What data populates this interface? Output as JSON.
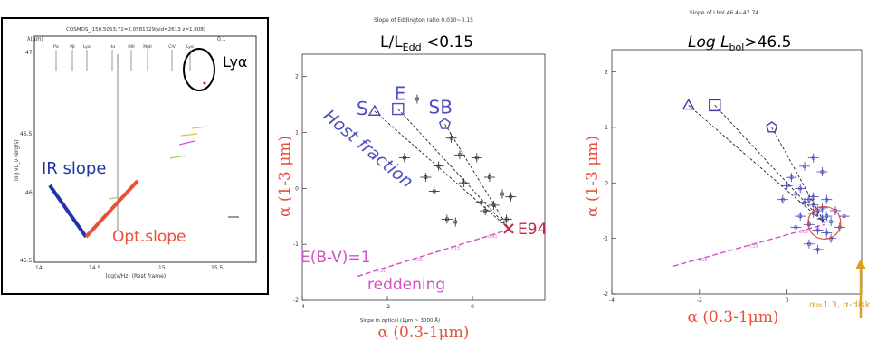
{
  "panel_sed": {
    "header_title": "COSMOS_J150.5063;71=2.0581729(sid=2613 z=1.808)",
    "top_axis_value": "0.1",
    "top_axis_label": "λ(μm)",
    "line_labels": [
      "Pα",
      "Pβ",
      "Lyα",
      "Hα",
      "OIII",
      "MgII",
      "CIV",
      "Lyα"
    ],
    "ylabel": "log νL_ν (erg/s)",
    "xlabel": "log(ν/Hz) (Rest frame)",
    "xticks": [
      "14",
      "14.5",
      "15",
      "15.5"
    ],
    "yticks": [
      "47",
      "46.5",
      "46",
      "45.5"
    ],
    "lya_label": "Lyα",
    "ir_slope_label": "IR slope",
    "opt_slope_label": "Opt.slope",
    "colors": {
      "ir": "#2233aa",
      "opt": "#e8503a",
      "frame": "#000000"
    }
  },
  "chart_data": [
    {
      "type": "scatter",
      "title": "Slope of Eddington ratio 0.010~0.15",
      "heading": "L/L",
      "heading_sub": "Edd",
      "heading_rest": " <0.15",
      "xlabel": "Slope in optical (1μm ~ 3000 Å)",
      "xlabel_big": "α (0.3-1μm)",
      "ylabel_big": "α (1-3 μm)",
      "xlim": [
        -4,
        1.7
      ],
      "ylim": [
        -2,
        2.4
      ],
      "xticks": [
        -4,
        -2,
        0
      ],
      "xtick_labels": [
        "-4",
        "-2",
        "0"
      ],
      "yticks": [
        -2,
        -1,
        0,
        1,
        2
      ],
      "ytick_labels": [
        "-2",
        "-1",
        "0",
        "1",
        "2"
      ],
      "model_points": [
        {
          "label": "S",
          "marker": "triangle",
          "x": -2.3,
          "y": 1.38
        },
        {
          "label": "E",
          "marker": "square",
          "x": -1.75,
          "y": 1.42
        },
        {
          "label": "SB",
          "marker": "pentagon",
          "x": -0.65,
          "y": 1.15
        }
      ],
      "anchor": {
        "label": "E94",
        "x": 0.85,
        "y": -0.72
      },
      "host_fraction_label": "Host fraction",
      "reddening_label": "E(B-V)=1",
      "reddening_word": "reddening",
      "reddening_line": {
        "x": [
          -2.7,
          0.8
        ],
        "y": [
          -1.57,
          -0.75
        ]
      },
      "reddening_ticks": [
        "0.35",
        "0.25",
        "0.15",
        "0.05"
      ],
      "data": {
        "x": [
          -1.3,
          -1.6,
          -0.8,
          -1.1,
          -0.9,
          -0.5,
          -0.3,
          0.1,
          -0.2,
          0.4,
          0.5,
          0.2,
          -0.6,
          0.7,
          0.9,
          0.8,
          -0.4,
          0.3
        ],
        "y": [
          1.6,
          0.55,
          0.4,
          0.2,
          -0.05,
          0.9,
          0.6,
          0.55,
          0.1,
          0.2,
          -0.3,
          -0.25,
          -0.55,
          -0.1,
          -0.15,
          -0.55,
          -0.6,
          -0.4
        ]
      },
      "colors": {
        "models": "#4b4fbf",
        "axis_big": "#e8503a",
        "reddening": "#d44fc4",
        "data": "#222222",
        "anchor": "#cc2244"
      }
    },
    {
      "type": "scatter",
      "title": "Slope of Lbol 46.4~47.74",
      "heading": "Log L",
      "heading_sub": "bol",
      "heading_rest": ">46.5",
      "xlabel_big": "α (0.3-1μm)",
      "ylabel_big": "α (1-3 μm)",
      "xlim": [
        -4,
        1.7
      ],
      "ylim": [
        -2,
        2.4
      ],
      "xticks": [
        -4,
        -2,
        0
      ],
      "xtick_labels": [
        "-4",
        "-2",
        "0"
      ],
      "yticks": [
        -2,
        -1,
        0,
        1,
        2
      ],
      "ytick_labels": [
        "-2",
        "-1",
        "0",
        "1",
        "2"
      ],
      "model_points": [
        {
          "label": "",
          "marker": "triangle",
          "x": -2.25,
          "y": 1.4
        },
        {
          "label": "",
          "marker": "square",
          "x": -1.65,
          "y": 1.4
        },
        {
          "label": "",
          "marker": "pentagon",
          "x": -0.35,
          "y": 1.0
        }
      ],
      "annotation": "α=1.3, α-disk",
      "reddening_line": {
        "x": [
          -2.6,
          0.85
        ],
        "y": [
          -1.5,
          -0.75
        ]
      },
      "reddening_ticks": [
        "0.25",
        "0.15",
        "0.05"
      ],
      "data": {
        "x": [
          0.1,
          0.3,
          0.5,
          0.6,
          0.7,
          0.8,
          0.9,
          1.0,
          0.2,
          0.4,
          0.6,
          0.8,
          1.1,
          1.2,
          0.0,
          0.3,
          0.5,
          0.7,
          0.9,
          1.0,
          0.4,
          0.6,
          0.8,
          -0.1,
          0.2,
          0.9,
          1.3,
          0.5,
          0.7,
          0.6
        ],
        "y": [
          0.1,
          -0.1,
          -0.3,
          -0.4,
          -0.5,
          -0.45,
          -0.6,
          -0.7,
          -0.2,
          -0.35,
          -0.55,
          -0.65,
          -0.5,
          -0.8,
          -0.05,
          -0.6,
          -0.75,
          -0.85,
          -0.9,
          -1.0,
          0.3,
          0.45,
          0.2,
          -0.3,
          -0.8,
          -0.3,
          -0.6,
          -1.1,
          -1.2,
          -0.25
        ]
      },
      "colors": {
        "models": "#3a3fb0",
        "axis_big": "#e8503a",
        "reddening": "#d44fc4",
        "data": "#3a3fb0",
        "annotation": "#d9a021"
      }
    }
  ]
}
